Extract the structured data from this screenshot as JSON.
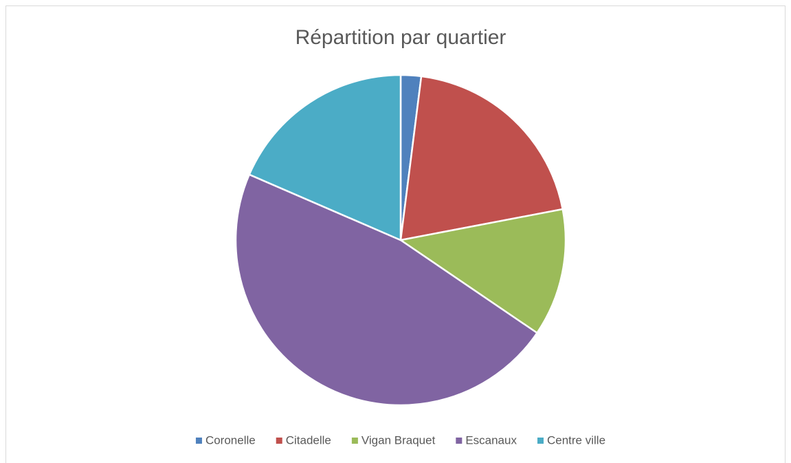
{
  "chart_data": {
    "type": "pie",
    "title": "Répartition par quartier",
    "categories": [
      "Coronelle",
      "Citadelle",
      "Vigan Braquet",
      "Escanaux",
      "Centre ville"
    ],
    "values": [
      2,
      20,
      12.5,
      47,
      18.5
    ],
    "colors": [
      "#4f81bd",
      "#c0504d",
      "#9bbb59",
      "#8064a2",
      "#4bacc6"
    ],
    "legend": "bottom"
  }
}
